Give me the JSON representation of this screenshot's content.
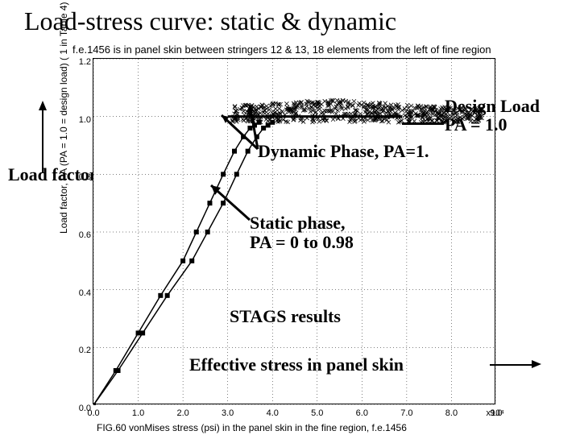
{
  "title": "Load-stress curve: static & dynamic",
  "subtitle": "f.e.1456 is in panel skin between stringers 12 & 13, 18 elements from the left of fine region",
  "bottom_caption": "FIG.60  vonMises stress (psi) in the panel skin in the fine region, f.e.1456",
  "ylabel": "Load factor, PA  (PA = 1.0 = design load) ( 1 in Table 4)",
  "x_sci": "x10⁴",
  "chart": {
    "type": "line",
    "background_color": "#ffffff",
    "grid_color": "#000000",
    "xlim": [
      0.0,
      9.0
    ],
    "ylim": [
      0.0,
      1.2
    ],
    "xticks": [
      0.0,
      1.0,
      2.0,
      3.0,
      4.0,
      5.0,
      6.0,
      7.0,
      8.0,
      9.0
    ],
    "yticks": [
      0.0,
      0.2,
      0.4,
      0.6,
      0.8,
      1.0,
      1.2
    ],
    "design_load_y": 1.0,
    "static_series": {
      "color": "#000000",
      "marker": "square",
      "line_width": 1.5,
      "x": [
        0.0,
        0.5,
        1.0,
        1.5,
        2.0,
        2.3,
        2.6,
        2.9,
        3.15,
        3.35,
        3.5,
        3.6,
        3.7
      ],
      "y": [
        0.0,
        0.12,
        0.25,
        0.38,
        0.5,
        0.6,
        0.7,
        0.8,
        0.88,
        0.93,
        0.96,
        0.97,
        0.98
      ]
    },
    "static_series2": {
      "color": "#000000",
      "marker": "square",
      "line_width": 1.5,
      "x": [
        0.0,
        0.55,
        1.1,
        1.65,
        2.2,
        2.55,
        2.9,
        3.2,
        3.45,
        3.65,
        3.8,
        3.9,
        4.0
      ],
      "y": [
        0.0,
        0.12,
        0.25,
        0.38,
        0.5,
        0.6,
        0.7,
        0.8,
        0.88,
        0.93,
        0.96,
        0.97,
        0.98
      ]
    },
    "dynamic_cloud": {
      "color": "#000000",
      "marker": "x",
      "xmin": 3.1,
      "xmax": 8.7,
      "ymin": 0.98,
      "ymax": 1.06,
      "count": 600
    }
  },
  "annotations": {
    "load_factor_label": "Load factor, PA",
    "design_load": {
      "l1": "Design Load",
      "l2": "PA = 1.0"
    },
    "dynamic_phase": "Dynamic Phase, PA=1.",
    "static_phase": {
      "l1": "Static phase,",
      "l2": "PA = 0 to 0.98"
    },
    "stags": "STAGS results",
    "eff_stress": "Effective stress in panel skin"
  },
  "font": {
    "title_size": 32,
    "annot_size": 22
  }
}
